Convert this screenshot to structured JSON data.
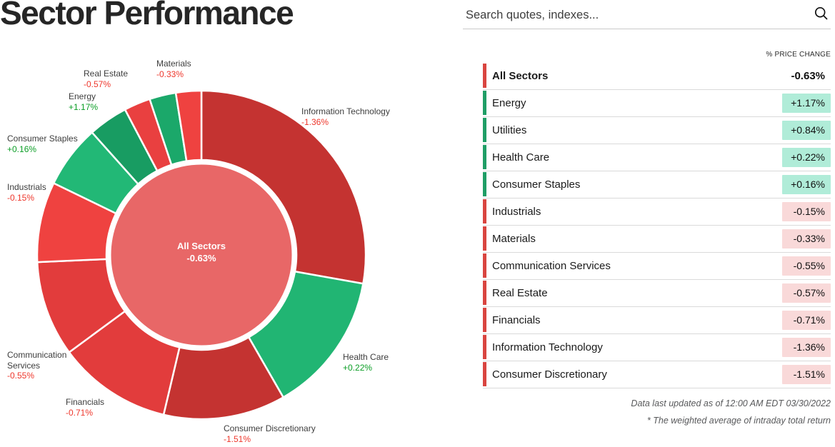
{
  "page": {
    "title": "Sector Performance"
  },
  "search": {
    "placeholder": "Search quotes, indexes...",
    "icon": "magnifier"
  },
  "table": {
    "header": "% PRICE CHANGE",
    "summary_row": {
      "label": "All Sectors",
      "value": "-0.63%",
      "direction": "down"
    },
    "rows": [
      {
        "label": "Energy",
        "value": "+1.17%",
        "direction": "up"
      },
      {
        "label": "Utilities",
        "value": "+0.84%",
        "direction": "up"
      },
      {
        "label": "Health Care",
        "value": "+0.22%",
        "direction": "up"
      },
      {
        "label": "Consumer Staples",
        "value": "+0.16%",
        "direction": "up"
      },
      {
        "label": "Industrials",
        "value": "-0.15%",
        "direction": "down"
      },
      {
        "label": "Materials",
        "value": "-0.33%",
        "direction": "down"
      },
      {
        "label": "Communication Services",
        "value": "-0.55%",
        "direction": "down"
      },
      {
        "label": "Real Estate",
        "value": "-0.57%",
        "direction": "down"
      },
      {
        "label": "Financials",
        "value": "-0.71%",
        "direction": "down"
      },
      {
        "label": "Information Technology",
        "value": "-1.36%",
        "direction": "down"
      },
      {
        "label": "Consumer Discretionary",
        "value": "-1.51%",
        "direction": "down"
      }
    ]
  },
  "footnotes": [
    "Data last updated as of 12:00 AM EDT 03/30/2022",
    "* The weighted average of intraday total return"
  ],
  "colors": {
    "positive_badge": "#b0ecd8",
    "negative_badge": "#f9d9d9",
    "positive_bar": "#1f9e66",
    "negative_bar": "#d94540",
    "positive_text": "#0c9e26",
    "negative_text": "#ee372c",
    "donut_center": "#e86767"
  },
  "chart_data": {
    "type": "pie",
    "subtype": "donut",
    "title": "Sector Performance",
    "legend_position": "none",
    "center": {
      "label": "All Sectors",
      "value": "-0.63%",
      "color": "#e86767",
      "text_color": "#ffffff"
    },
    "notes": "slice angular size reflects sector market-cap weight, drawn clockwise from 12 o'clock",
    "series": [
      {
        "name": "Information Technology",
        "change": "-1.36%",
        "weight_pct": 27.8,
        "direction": "down",
        "color": "#c43331"
      },
      {
        "name": "Health Care",
        "change": "+0.22%",
        "weight_pct": 13.9,
        "direction": "up",
        "color": "#21b573"
      },
      {
        "name": "Consumer Discretionary",
        "change": "-1.51%",
        "weight_pct": 12.0,
        "direction": "down",
        "color": "#c43331"
      },
      {
        "name": "Financials",
        "change": "-0.71%",
        "weight_pct": 11.2,
        "direction": "down",
        "color": "#e23c3c"
      },
      {
        "name": "Communication Services",
        "change": "-0.55%",
        "weight_pct": 9.4,
        "direction": "down",
        "color": "#e23c3c"
      },
      {
        "name": "Industrials",
        "change": "-0.15%",
        "weight_pct": 7.9,
        "direction": "down",
        "color": "#ef4240"
      },
      {
        "name": "Consumer Staples",
        "change": "+0.16%",
        "weight_pct": 6.2,
        "direction": "up",
        "color": "#22b876"
      },
      {
        "name": "Energy",
        "change": "+1.17%",
        "weight_pct": 3.9,
        "direction": "up",
        "color": "#189c62"
      },
      {
        "name": "Real Estate",
        "change": "-0.57%",
        "weight_pct": 2.6,
        "direction": "down",
        "color": "#e94040"
      },
      {
        "name": "Utilities",
        "change": "+0.84%",
        "weight_pct": 2.6,
        "direction": "up",
        "color": "#1ba86a"
      },
      {
        "name": "Materials",
        "change": "-0.33%",
        "weight_pct": 2.5,
        "direction": "down",
        "color": "#ef4240"
      }
    ]
  }
}
